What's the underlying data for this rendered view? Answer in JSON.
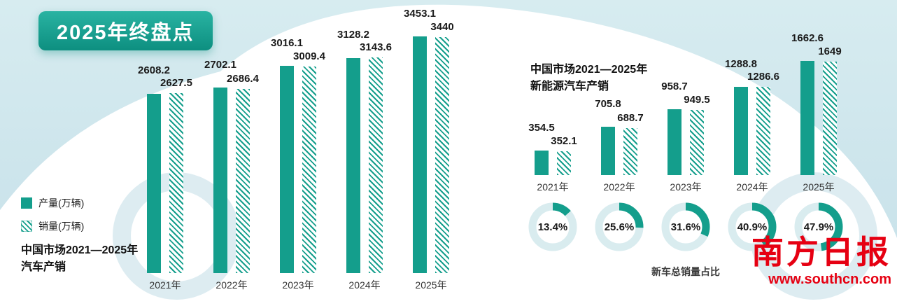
{
  "badge": {
    "title": "2025年终盘点"
  },
  "legend": {
    "production": "产量(万辆)",
    "sales": "销量(万辆)"
  },
  "left_chart": {
    "title_line1": "中国市场2021—2025年",
    "title_line2": "汽车产销"
  },
  "right_chart": {
    "title_line1": "中国市场2021—2025年",
    "title_line2": "新能源汽车产销"
  },
  "donuts": {
    "caption": "新车总销量占比"
  },
  "footer": {
    "brand": "南方日报",
    "url": "www.southcn.com"
  },
  "colors": {
    "teal": "#149e8c",
    "red": "#e60012"
  },
  "chart_data": [
    {
      "type": "bar",
      "title": "中国市场2021—2025年汽车产销",
      "unit": "万辆",
      "categories": [
        "2021年",
        "2022年",
        "2023年",
        "2024年",
        "2025年"
      ],
      "series": [
        {
          "name": "产量(万辆)",
          "values": [
            2608.2,
            2702.1,
            3016.1,
            3128.2,
            3453.1
          ]
        },
        {
          "name": "销量(万辆)",
          "values": [
            2627.5,
            2686.4,
            3009.4,
            3143.6,
            3440
          ]
        }
      ],
      "ylim": [
        0,
        3500
      ],
      "grid": false,
      "legend_position": "left"
    },
    {
      "type": "bar",
      "title": "中国市场2021—2025年新能源汽车产销",
      "unit": "万辆",
      "categories": [
        "2021年",
        "2022年",
        "2023年",
        "2024年",
        "2025年"
      ],
      "series": [
        {
          "name": "产量(万辆)",
          "values": [
            354.5,
            705.8,
            958.7,
            1288.8,
            1662.6
          ]
        },
        {
          "name": "销量(万辆)",
          "values": [
            352.1,
            688.7,
            949.5,
            1286.6,
            1649
          ]
        }
      ],
      "ylim": [
        0,
        1700
      ],
      "grid": false,
      "legend_position": "left"
    },
    {
      "type": "pie",
      "title": "新车总销量占比",
      "categories": [
        "2021年",
        "2022年",
        "2023年",
        "2024年",
        "2025年"
      ],
      "values": [
        13.4,
        25.6,
        31.6,
        40.9,
        47.9
      ],
      "unit": "%"
    }
  ]
}
